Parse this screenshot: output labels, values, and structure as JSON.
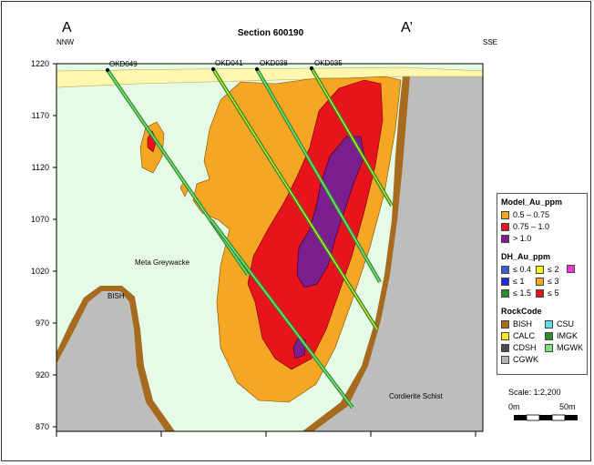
{
  "header": {
    "section_a": "A",
    "section_a_prime": "A’",
    "title": "Section 600190",
    "nnw": "NNW",
    "sse": "SSE"
  },
  "y_axis": {
    "ticks": [
      "1220",
      "1170",
      "1120",
      "1070",
      "1020",
      "970",
      "920",
      "870"
    ]
  },
  "drillholes": {
    "okd049": "OKD049",
    "okd041": "OKD041",
    "okd038": "OKD038",
    "okd035": "OKD035"
  },
  "rock_labels": {
    "meta": "Meta Greywacke",
    "bish": "BISH",
    "cordierite": "Cordierite Schist"
  },
  "legend": {
    "model_title": "Model_Au_ppm",
    "model_items": [
      {
        "label": "0.5 – 0.75",
        "color": "#f5a623"
      },
      {
        "label": "0.75 – 1.0",
        "color": "#e8141b"
      },
      {
        "label": "> 1.0",
        "color": "#7b1f8f"
      }
    ],
    "dh_title": "DH_Au_ppm",
    "dh_items": [
      {
        "label": "≤ 0.4",
        "color": "#3a5fcd"
      },
      {
        "label": "≤ 2",
        "color": "#f6f21e"
      },
      {
        "label": "",
        "color": "#e63ad8"
      },
      {
        "label": "≤ 1",
        "color": "#1f2fd8"
      },
      {
        "label": "≤ 3",
        "color": "#f5a623"
      },
      {
        "label": "≤ 1.5",
        "color": "#2e8b2e"
      },
      {
        "label": "≤ 5",
        "color": "#e8141b"
      }
    ],
    "rock_title": "RockCode",
    "rock_items": [
      {
        "label": "BISH",
        "color": "#a66b1f"
      },
      {
        "label": "CSU",
        "color": "#5ee0ee"
      },
      {
        "label": "CALC",
        "color": "#f6f21e"
      },
      {
        "label": "IMGK",
        "color": "#2e8b2e"
      },
      {
        "label": "CDSH",
        "color": "#4a4a4a"
      },
      {
        "label": "MGWK",
        "color": "#7ee27e"
      },
      {
        "label": "CGWK",
        "color": "#b5b5b5"
      }
    ]
  },
  "scale": {
    "text": "Scale: 1:2,200",
    "left": "0m",
    "right": "50m"
  },
  "colors": {
    "background_rock": "#e6fbe6",
    "grey_rock": "#bdbdbd",
    "bish_band": "#a66b1f",
    "surface": "#fff7b0",
    "low_grade": "#f5a623",
    "mid_grade": "#e8141b",
    "high_grade": "#7b1f8f"
  }
}
